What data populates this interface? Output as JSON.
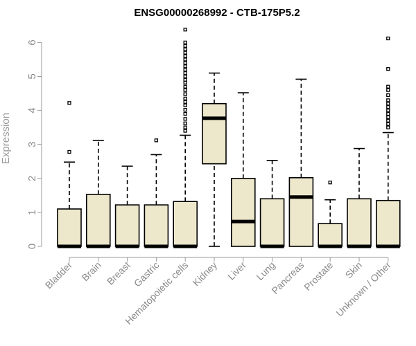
{
  "chart_data": {
    "type": "boxplot",
    "title": "ENSG00000268992 - CTB-175P5.2",
    "xlabel": "",
    "ylabel": "Expression",
    "ylim": [
      0,
      6.3
    ],
    "yticks": [
      0,
      1,
      2,
      3,
      4,
      5,
      6
    ],
    "box_color": "#ede7cc",
    "categories": [
      "Bladder",
      "Brain",
      "Breast",
      "Gastric",
      "Hematopoietic cells",
      "Kidney",
      "Liver",
      "Lung",
      "Pancreas",
      "Prostate",
      "Skin",
      "Unknown / Other"
    ],
    "boxes": [
      {
        "min": 0,
        "q1": 0,
        "median": 0,
        "q3": 1.1,
        "max": 2.48,
        "outliers": [
          2.78,
          4.22
        ]
      },
      {
        "min": 0,
        "q1": 0,
        "median": 0,
        "q3": 1.53,
        "max": 3.12,
        "outliers": []
      },
      {
        "min": 0,
        "q1": 0,
        "median": 0,
        "q3": 1.22,
        "max": 2.36,
        "outliers": []
      },
      {
        "min": 0,
        "q1": 0,
        "median": 0,
        "q3": 1.22,
        "max": 2.7,
        "outliers": [
          3.12
        ]
      },
      {
        "min": 0,
        "q1": 0,
        "median": 0,
        "q3": 1.32,
        "max": 3.27,
        "outliers": [
          3.4,
          3.5,
          3.62,
          3.75,
          3.9,
          4.02,
          4.15,
          4.25,
          4.35,
          4.48,
          4.6,
          4.7,
          4.82,
          4.9,
          5.0,
          5.1,
          5.2,
          5.3,
          5.4,
          5.5,
          5.6,
          5.7,
          5.8,
          5.9,
          6.0,
          6.38
        ]
      },
      {
        "min": 0,
        "q1": 2.43,
        "median": 3.77,
        "q3": 4.2,
        "max": 5.1,
        "outliers": []
      },
      {
        "min": 0,
        "q1": 0,
        "median": 0.73,
        "q3": 2.0,
        "max": 4.52,
        "outliers": []
      },
      {
        "min": 0,
        "q1": 0,
        "median": 0,
        "q3": 1.4,
        "max": 2.53,
        "outliers": []
      },
      {
        "min": 0,
        "q1": 0,
        "median": 1.45,
        "q3": 2.02,
        "max": 4.92,
        "outliers": []
      },
      {
        "min": 0,
        "q1": 0,
        "median": 0,
        "q3": 0.67,
        "max": 1.37,
        "outliers": [
          1.88
        ]
      },
      {
        "min": 0,
        "q1": 0,
        "median": 0,
        "q3": 1.4,
        "max": 2.88,
        "outliers": []
      },
      {
        "min": 0,
        "q1": 0,
        "median": 0,
        "q3": 1.35,
        "max": 3.35,
        "outliers": [
          3.5,
          3.6,
          3.7,
          3.8,
          3.9,
          4.0,
          4.1,
          4.2,
          4.3,
          4.45,
          4.6,
          4.7,
          5.22,
          6.12
        ]
      }
    ]
  }
}
